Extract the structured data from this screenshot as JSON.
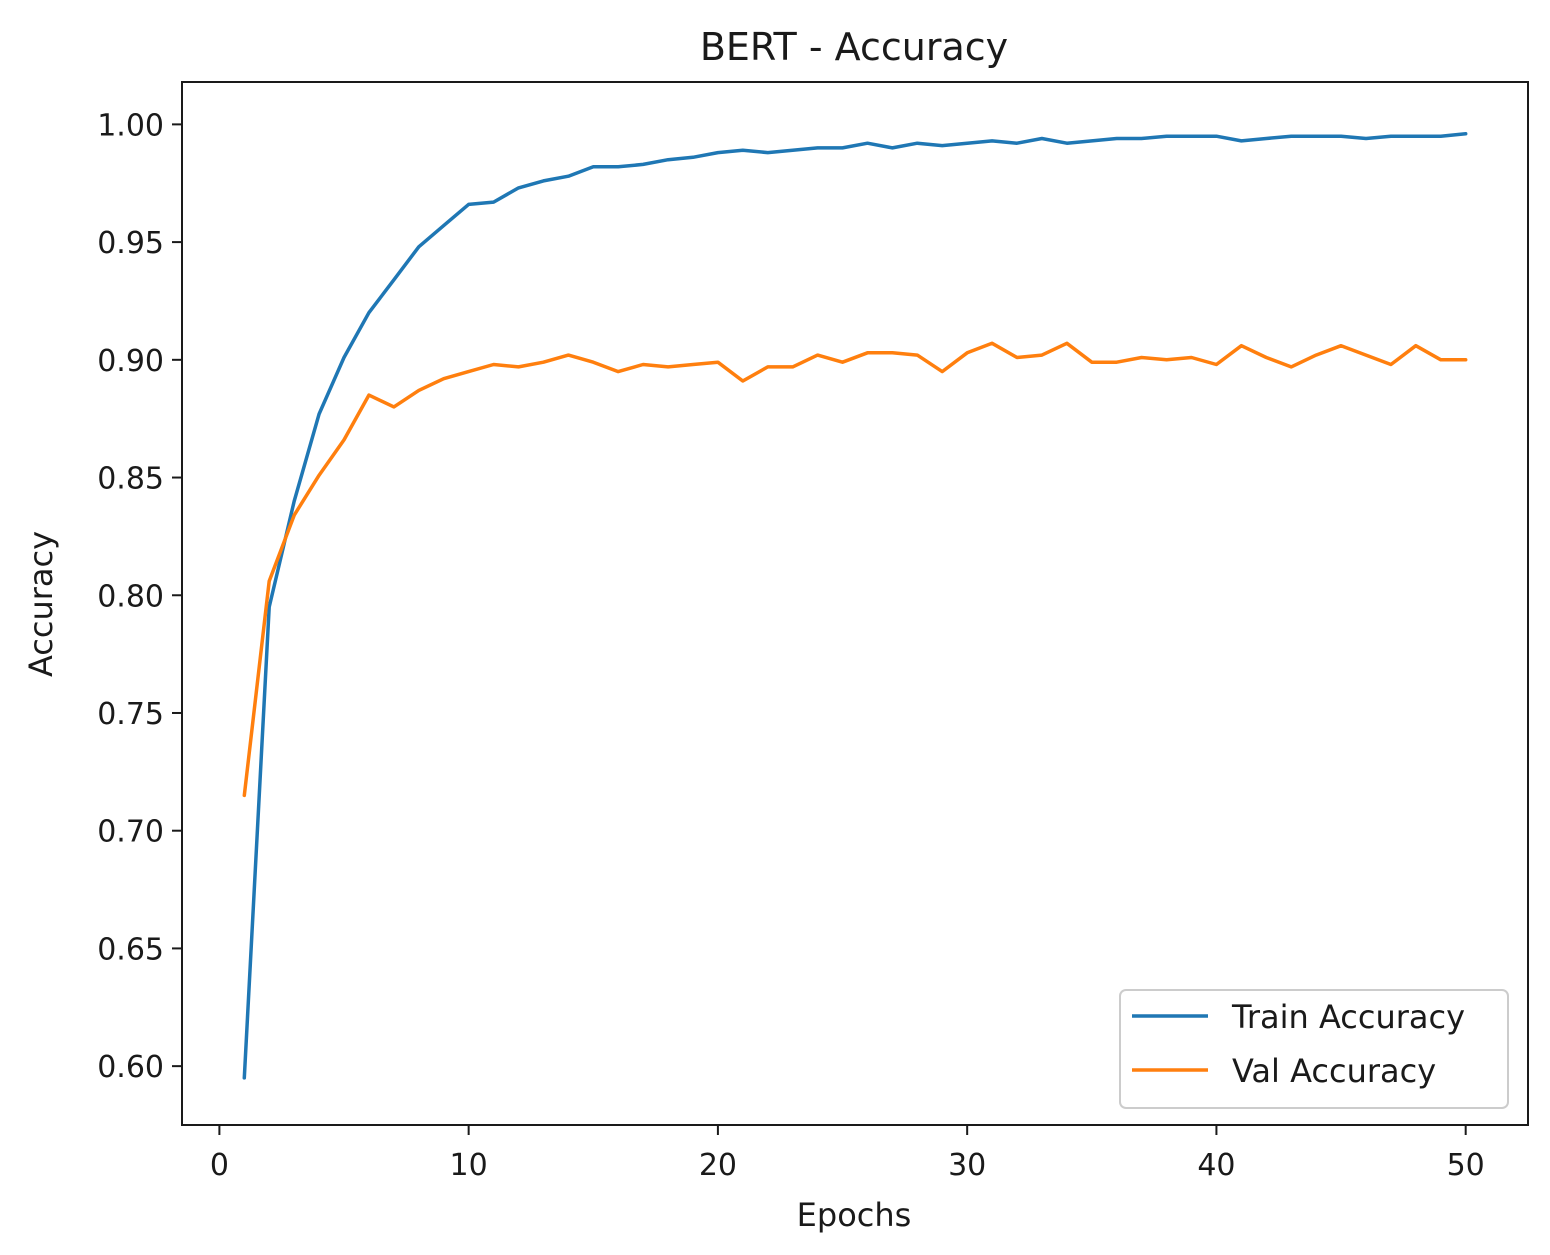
{
  "chart_data": {
    "type": "line",
    "title": "BERT - Accuracy",
    "xlabel": "Epochs",
    "ylabel": "Accuracy",
    "xlim": [
      -1.5,
      52.5
    ],
    "ylim": [
      0.575,
      1.018
    ],
    "xticks": [
      0,
      10,
      20,
      30,
      40,
      50
    ],
    "yticks": [
      0.6,
      0.65,
      0.7,
      0.75,
      0.8,
      0.85,
      0.9,
      0.95,
      1.0
    ],
    "xtick_labels": [
      "0",
      "10",
      "20",
      "30",
      "40",
      "50"
    ],
    "ytick_labels": [
      "0.60",
      "0.65",
      "0.70",
      "0.75",
      "0.80",
      "0.85",
      "0.90",
      "0.95",
      "1.00"
    ],
    "grid": false,
    "legend_position": "lower-right",
    "x": [
      1,
      2,
      3,
      4,
      5,
      6,
      7,
      8,
      9,
      10,
      11,
      12,
      13,
      14,
      15,
      16,
      17,
      18,
      19,
      20,
      21,
      22,
      23,
      24,
      25,
      26,
      27,
      28,
      29,
      30,
      31,
      32,
      33,
      34,
      35,
      36,
      37,
      38,
      39,
      40,
      41,
      42,
      43,
      44,
      45,
      46,
      47,
      48,
      49,
      50
    ],
    "series": [
      {
        "name": "Train Accuracy",
        "color": "#1f77b4",
        "values": [
          0.595,
          0.795,
          0.84,
          0.877,
          0.901,
          0.92,
          0.934,
          0.948,
          0.957,
          0.966,
          0.967,
          0.973,
          0.976,
          0.978,
          0.982,
          0.982,
          0.983,
          0.985,
          0.986,
          0.988,
          0.989,
          0.988,
          0.989,
          0.99,
          0.99,
          0.992,
          0.99,
          0.992,
          0.991,
          0.992,
          0.993,
          0.992,
          0.994,
          0.992,
          0.993,
          0.994,
          0.994,
          0.995,
          0.995,
          0.995,
          0.993,
          0.994,
          0.995,
          0.995,
          0.995,
          0.994,
          0.995,
          0.995,
          0.995,
          0.996
        ]
      },
      {
        "name": "Val Accuracy",
        "color": "#ff7f0e",
        "values": [
          0.715,
          0.806,
          0.834,
          0.851,
          0.866,
          0.885,
          0.88,
          0.887,
          0.892,
          0.895,
          0.898,
          0.897,
          0.899,
          0.902,
          0.899,
          0.895,
          0.898,
          0.897,
          0.898,
          0.899,
          0.891,
          0.897,
          0.897,
          0.902,
          0.899,
          0.903,
          0.903,
          0.902,
          0.895,
          0.903,
          0.907,
          0.901,
          0.902,
          0.907,
          0.899,
          0.899,
          0.901,
          0.9,
          0.901,
          0.898,
          0.906,
          0.901,
          0.897,
          0.902,
          0.906,
          0.902,
          0.898,
          0.906,
          0.9,
          0.9
        ]
      }
    ]
  }
}
